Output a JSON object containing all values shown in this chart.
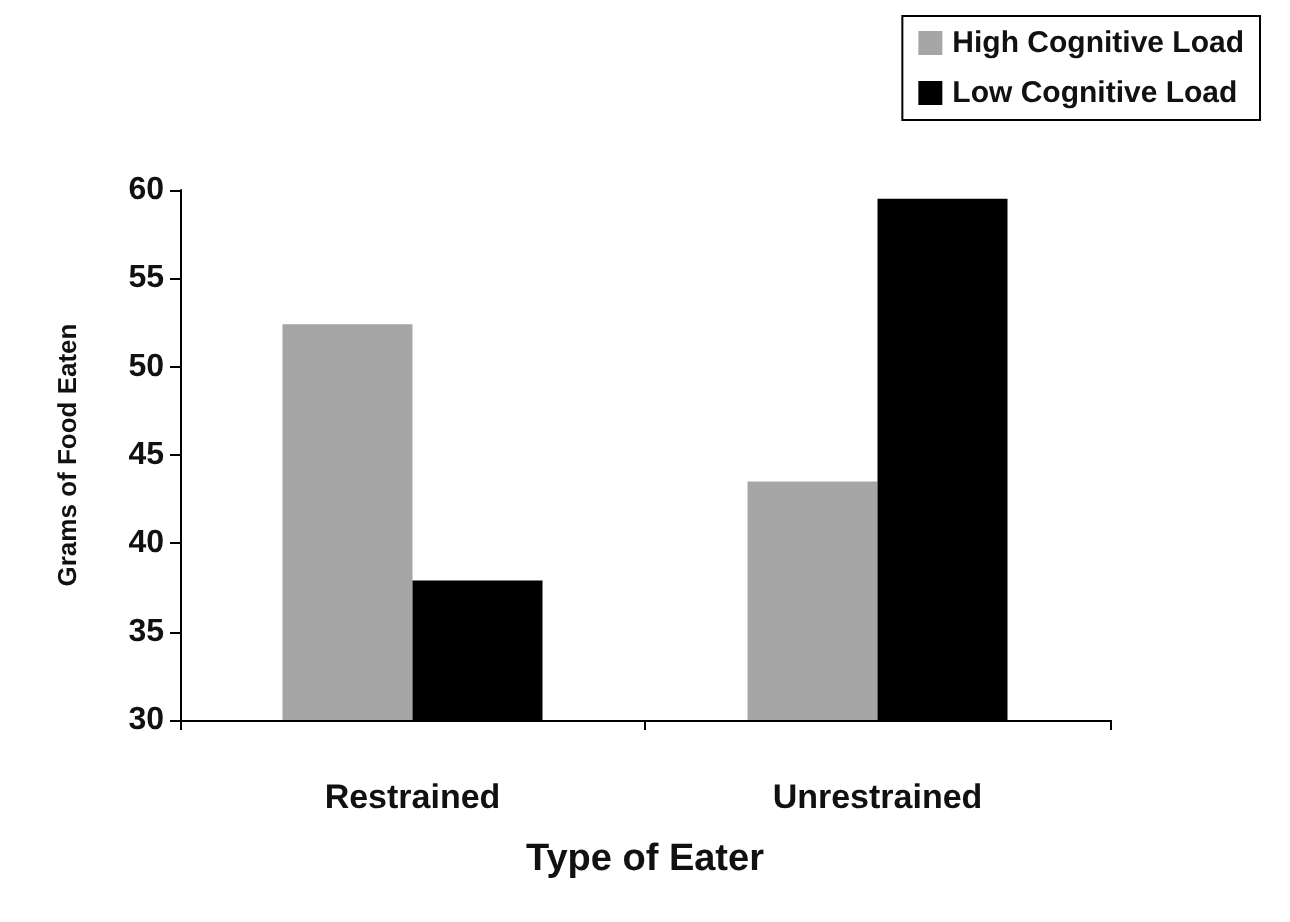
{
  "chart_data": {
    "type": "bar",
    "xlabel": "Type of Eater",
    "ylabel": "Grams of Food Eaten",
    "categories": [
      "Restrained",
      "Unrestrained"
    ],
    "series": [
      {
        "name": "High Cognitive Load",
        "color": "#a6a6a6",
        "values": [
          52.4,
          43.5
        ]
      },
      {
        "name": "Low Cognitive Load",
        "color": "#000000",
        "values": [
          37.9,
          59.5
        ]
      }
    ],
    "ylim": [
      30,
      60
    ],
    "yticks": [
      30,
      35,
      40,
      45,
      50,
      55,
      60
    ],
    "grid": false,
    "legend": "top right"
  }
}
